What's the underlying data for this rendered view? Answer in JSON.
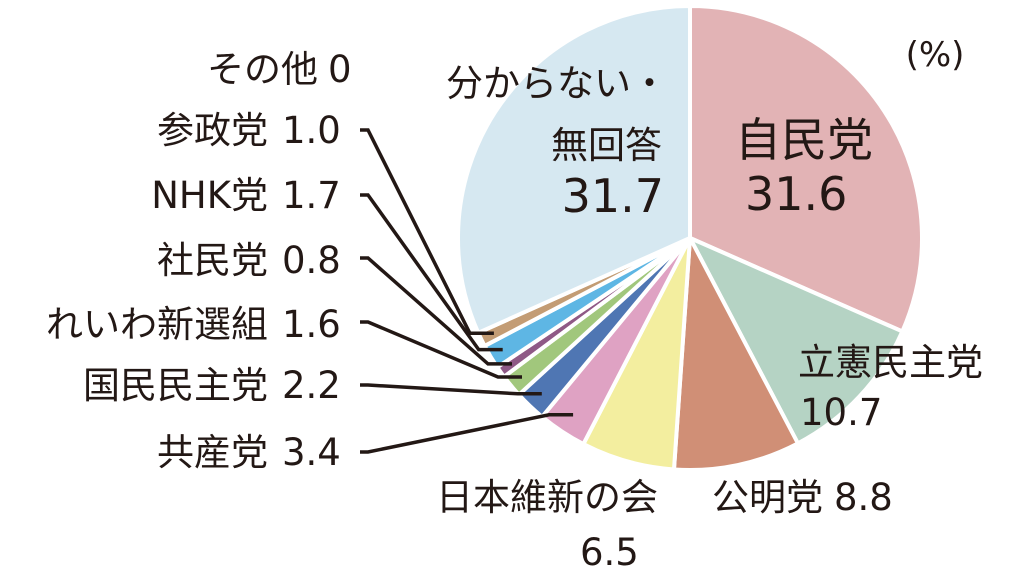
{
  "chart_data": {
    "type": "pie",
    "unit_label": "(%)",
    "slices": [
      {
        "label": "自民党",
        "value": 31.6,
        "value_text": "31.6",
        "color": "#e2b3b5"
      },
      {
        "label": "立憲民主党",
        "value": 10.7,
        "value_text": "10.7",
        "color": "#b5d3c4"
      },
      {
        "label": "公明党",
        "value": 8.8,
        "value_text": "8.8",
        "color": "#d08f76"
      },
      {
        "label": "日本維新の会",
        "value": 6.5,
        "value_text": "6.5",
        "color": "#f3ee9f"
      },
      {
        "label": "共産党",
        "value": 3.4,
        "value_text": "3.4",
        "color": "#dfa2c3"
      },
      {
        "label": "国民民主党",
        "value": 2.2,
        "value_text": "2.2",
        "color": "#4f76b3"
      },
      {
        "label": "れいわ新選組",
        "value": 1.6,
        "value_text": "1.6",
        "color": "#a1c77c"
      },
      {
        "label": "社民党",
        "value": 0.8,
        "value_text": "0.8",
        "color": "#8f5986"
      },
      {
        "label": "NHK党",
        "value": 1.7,
        "value_text": "1.7",
        "color": "#5eb6e4"
      },
      {
        "label": "参政党",
        "value": 1.0,
        "value_text": "1.0",
        "color": "#c39c74"
      },
      {
        "label": "その他",
        "value": 0,
        "value_text": "0",
        "color": "#cccccc"
      },
      {
        "label_lines": [
          "分からない・",
          "無回答"
        ],
        "value": 31.7,
        "value_text": "31.7",
        "color": "#d6e8f1"
      }
    ]
  }
}
